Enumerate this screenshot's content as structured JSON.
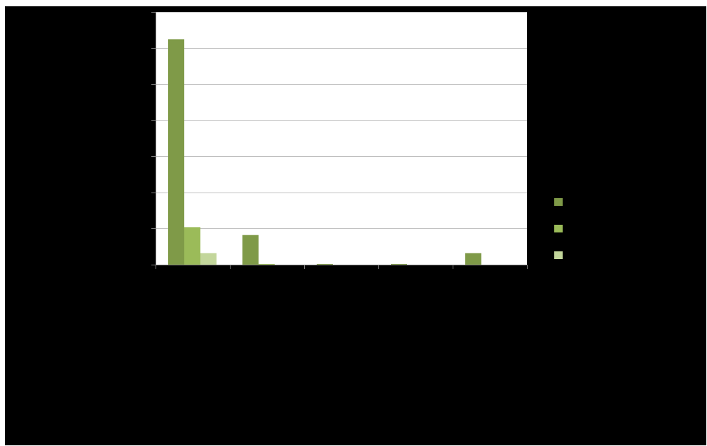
{
  "chart_data": {
    "type": "bar",
    "title": "",
    "xlabel": "",
    "ylabel": "",
    "categories": [
      "",
      "",
      "",
      "",
      ""
    ],
    "series": [
      {
        "color": "#7f9a48",
        "values": [
          312,
          41,
          1,
          1,
          16
        ]
      },
      {
        "color": "#9bbb59",
        "values": [
          52,
          1,
          0,
          0,
          0
        ]
      },
      {
        "color": "#c3d69b",
        "values": [
          16,
          0,
          0,
          0,
          0
        ]
      }
    ],
    "ylim": [
      0,
      350
    ],
    "y_gridline_step": 50,
    "grid": true,
    "legend": "right",
    "plot_background": "#ffffff",
    "page_background": "#000000"
  }
}
